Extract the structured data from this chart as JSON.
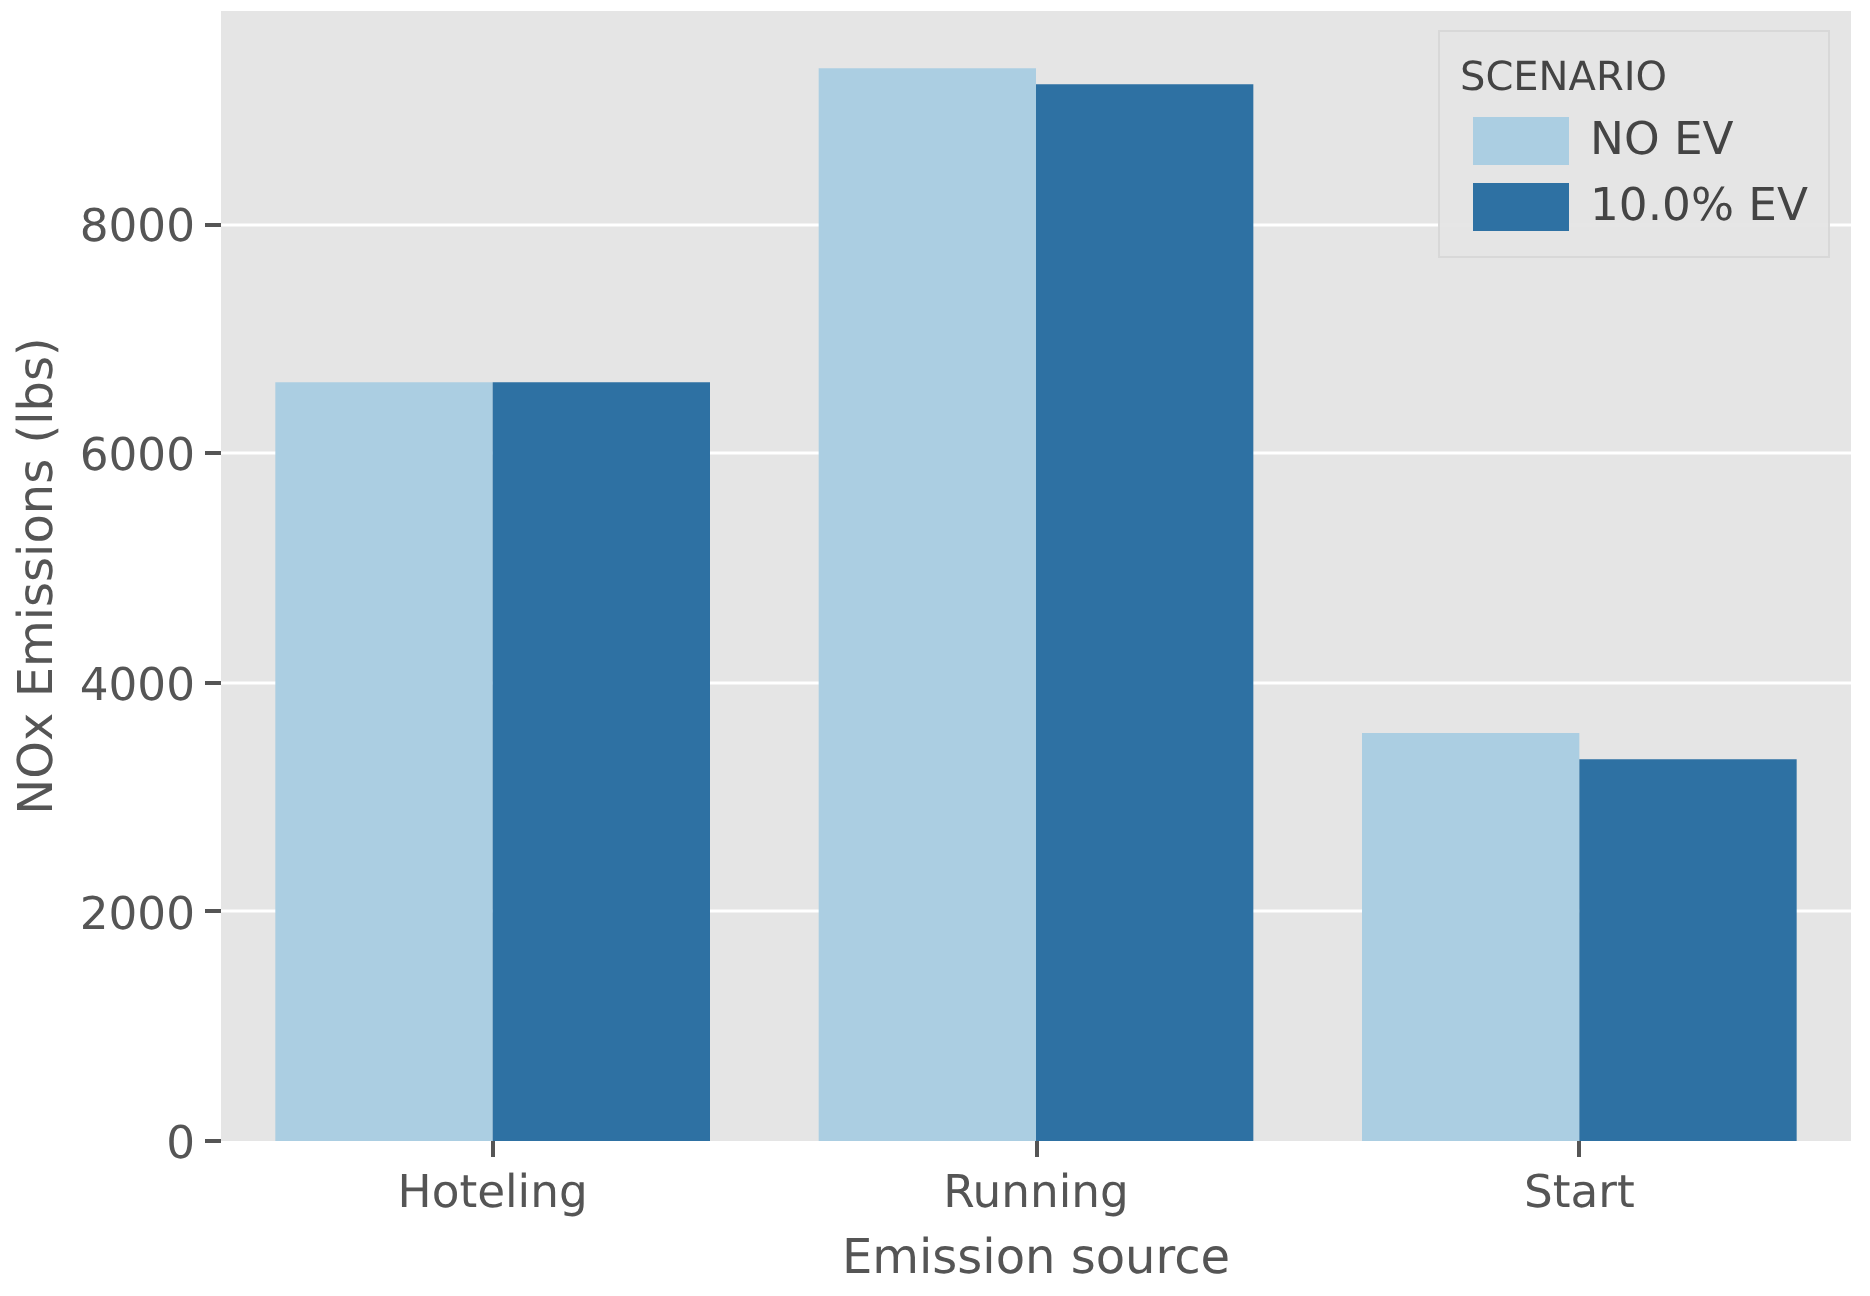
{
  "chart_data": {
    "type": "bar",
    "xlabel": "Emission source",
    "ylabel": "NOx Emissions (lbs)",
    "categories": [
      "Hoteling",
      "Running",
      "Start"
    ],
    "series": [
      {
        "name": "NO EV",
        "color": "#abcee2",
        "values": [
          6620,
          9360,
          3560
        ]
      },
      {
        "name": "10.0% EV",
        "color": "#2e71a3",
        "values": [
          6620,
          9220,
          3330
        ]
      }
    ],
    "legend_title": "SCENARIO",
    "legend": "top right",
    "ylim": [
      0,
      9860
    ],
    "yticks": [
      0,
      2000,
      4000,
      6000,
      8000
    ],
    "grid": "y"
  }
}
